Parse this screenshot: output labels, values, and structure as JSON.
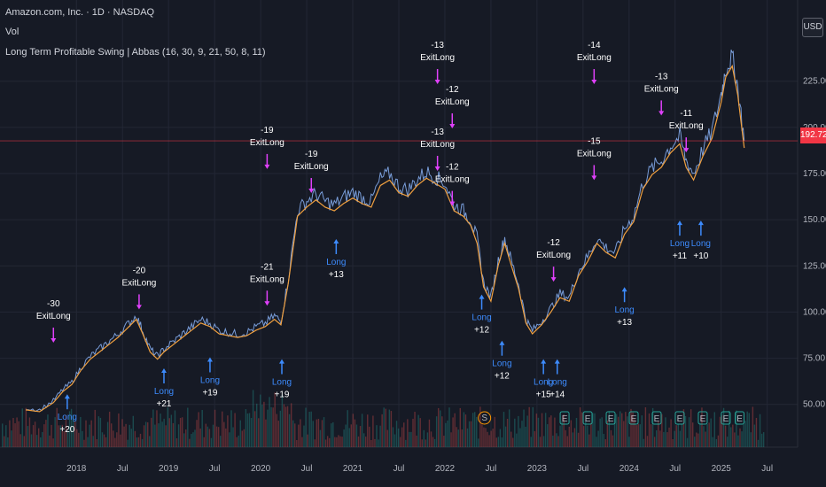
{
  "header": {
    "title": "Amazon.com, Inc. · 1D · NASDAQ",
    "vol_label": "Vol",
    "indicator": "Long Term Profitable Swing | Abbas (16, 30, 9, 21, 50, 8, 11)"
  },
  "currency": "USD",
  "last_price": "192.72",
  "colors": {
    "background": "#161a25",
    "grid": "#232735",
    "price_line": "#8ab4f8",
    "ma_fast": "#f0a040",
    "ma_slow": "#f0a040",
    "exit_marker": "#e040fb",
    "long_marker": "#3d8bfd",
    "last_price": "#f23645",
    "volume_up": "#26a69a",
    "volume_down": "#ef5350"
  },
  "chart_data": {
    "type": "line",
    "title": "Amazon.com, Inc. · 1D · NASDAQ",
    "xlabel": "",
    "ylabel": "",
    "ylim": [
      35,
      245
    ],
    "x_ticks": [
      "2018",
      "Jul",
      "2019",
      "Jul",
      "2020",
      "Jul",
      "2021",
      "Jul",
      "2022",
      "Jul",
      "2023",
      "Jul",
      "2024",
      "Jul",
      "2025",
      "Jul"
    ],
    "x_tick_pos": [
      2018.0,
      2018.5,
      2019.0,
      2019.5,
      2020.0,
      2020.5,
      2021.0,
      2021.5,
      2022.0,
      2022.5,
      2023.0,
      2023.5,
      2024.0,
      2024.5,
      2025.0,
      2025.5
    ],
    "y_ticks": [
      50,
      75,
      100,
      125,
      150,
      175,
      200,
      225
    ],
    "y_tick_labels": [
      "50.00",
      "75.00",
      "100.00",
      "125.00",
      "150.00",
      "175.00",
      "200.00",
      "225.00"
    ],
    "last_value": 192.72,
    "grid": true,
    "series": [
      {
        "x": [
          2017.45,
          2017.6,
          2017.75,
          2017.85,
          2017.95,
          2018.05,
          2018.15,
          2018.25,
          2018.35,
          2018.45,
          2018.55,
          2018.65,
          2018.72,
          2018.8,
          2018.88,
          2018.95,
          2019.05,
          2019.15,
          2019.25,
          2019.35,
          2019.45,
          2019.55,
          2019.65,
          2019.75,
          2019.85,
          2019.95,
          2020.05,
          2020.15,
          2020.22,
          2020.3,
          2020.4,
          2020.5,
          2020.6,
          2020.7,
          2020.8,
          2020.9,
          2021.0,
          2021.1,
          2021.2,
          2021.3,
          2021.4,
          2021.5,
          2021.6,
          2021.7,
          2021.8,
          2021.9,
          2022.0,
          2022.1,
          2022.2,
          2022.28,
          2022.35,
          2022.42,
          2022.5,
          2022.58,
          2022.65,
          2022.72,
          2022.8,
          2022.88,
          2022.95,
          2023.05,
          2023.15,
          2023.25,
          2023.35,
          2023.45,
          2023.55,
          2023.65,
          2023.75,
          2023.85,
          2023.95,
          2024.05,
          2024.15,
          2024.25,
          2024.35,
          2024.45,
          2024.55,
          2024.62,
          2024.7,
          2024.8,
          2024.9,
          2025.0,
          2025.05,
          2025.12,
          2025.18,
          2025.25
        ],
        "values": [
          48,
          47,
          52,
          58,
          62,
          70,
          76,
          80,
          84,
          88,
          93,
          98,
          90,
          80,
          76,
          80,
          84,
          88,
          92,
          96,
          94,
          90,
          89,
          88,
          89,
          92,
          94,
          98,
          95,
          118,
          155,
          160,
          164,
          160,
          158,
          162,
          165,
          162,
          160,
          172,
          175,
          168,
          166,
          172,
          176,
          173,
          170,
          158,
          155,
          150,
          140,
          116,
          108,
          128,
          140,
          128,
          115,
          96,
          90,
          95,
          102,
          110,
          108,
          122,
          130,
          140,
          135,
          132,
          145,
          152,
          170,
          178,
          182,
          190,
          195,
          182,
          175,
          188,
          198,
          218,
          232,
          238,
          222,
          192.72
        ]
      }
    ]
  },
  "annotations": {
    "exits": [
      {
        "n": "-30",
        "text": "ExitLong",
        "x": 2017.75,
        "p": 82
      },
      {
        "n": "-20",
        "text": "ExitLong",
        "x": 2018.68,
        "p": 100
      },
      {
        "n": "-19",
        "text": "ExitLong",
        "x": 2020.07,
        "p": 176
      },
      {
        "n": "-21",
        "text": "ExitLong",
        "x": 2020.07,
        "p": 102
      },
      {
        "n": "-19",
        "text": "ExitLong",
        "x": 2020.55,
        "p": 163
      },
      {
        "n": "-13",
        "text": "ExitLong",
        "x": 2021.92,
        "p": 222
      },
      {
        "n": "-12",
        "text": "ExitLong",
        "x": 2022.08,
        "p": 198
      },
      {
        "n": "-13",
        "text": "ExitLong",
        "x": 2021.92,
        "p": 175
      },
      {
        "n": "-12",
        "text": "ExitLong",
        "x": 2022.08,
        "p": 156
      },
      {
        "n": "-14",
        "text": "ExitLong",
        "x": 2023.62,
        "p": 222
      },
      {
        "n": "-15",
        "text": "ExitLong",
        "x": 2023.62,
        "p": 170
      },
      {
        "n": "-12",
        "text": "ExitLong",
        "x": 2023.18,
        "p": 115
      },
      {
        "n": "-13",
        "text": "ExitLong",
        "x": 2024.35,
        "p": 205
      },
      {
        "n": "-11",
        "text": "ExitLong",
        "x": 2024.62,
        "p": 185
      }
    ],
    "longs": [
      {
        "n": "+20",
        "x": 2017.9,
        "p": 56
      },
      {
        "n": "+21",
        "x": 2018.95,
        "p": 70
      },
      {
        "n": "+19",
        "x": 2019.45,
        "p": 76
      },
      {
        "n": "+19",
        "x": 2020.23,
        "p": 75
      },
      {
        "n": "+13",
        "x": 2020.82,
        "p": 140
      },
      {
        "n": "+12",
        "x": 2022.4,
        "p": 110
      },
      {
        "n": "+12",
        "x": 2022.62,
        "p": 85
      },
      {
        "n": "+15",
        "x": 2023.07,
        "p": 75
      },
      {
        "n": "+14",
        "x": 2023.22,
        "p": 75
      },
      {
        "n": "+13",
        "x": 2023.95,
        "p": 114
      },
      {
        "n": "+11",
        "x": 2024.55,
        "p": 150
      },
      {
        "n": "+10",
        "x": 2024.78,
        "p": 150
      }
    ],
    "long_label": "Long",
    "earnings_label": "E",
    "split_label": "S"
  }
}
